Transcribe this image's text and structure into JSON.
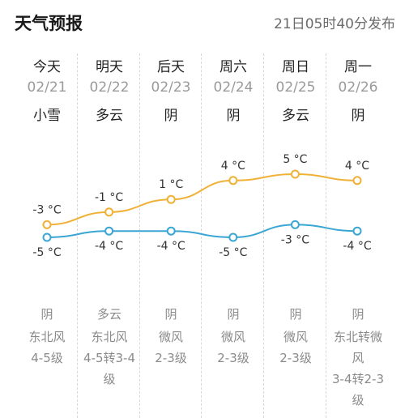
{
  "header": {
    "title": "天气预报",
    "publish_time": "21日05时40分发布"
  },
  "days": [
    {
      "day": "今天",
      "date": "02/21",
      "condition": "小雪",
      "high": -3,
      "high_label": "-3 °C",
      "low": -5,
      "low_label": "-5 °C",
      "night_condition": "阴",
      "wind_dir": "东北风",
      "wind_level": "4-5级"
    },
    {
      "day": "明天",
      "date": "02/22",
      "condition": "多云",
      "high": -1,
      "high_label": "-1 °C",
      "low": -4,
      "low_label": "-4 °C",
      "night_condition": "多云",
      "wind_dir": "东北风",
      "wind_level": "4-5转3-4级"
    },
    {
      "day": "后天",
      "date": "02/23",
      "condition": "阴",
      "high": 1,
      "high_label": "1 °C",
      "low": -4,
      "low_label": "-4 °C",
      "night_condition": "阴",
      "wind_dir": "微风",
      "wind_level": "2-3级"
    },
    {
      "day": "周六",
      "date": "02/24",
      "condition": "阴",
      "high": 4,
      "high_label": "4 °C",
      "low": -5,
      "low_label": "-5 °C",
      "night_condition": "阴",
      "wind_dir": "微风",
      "wind_level": "2-3级"
    },
    {
      "day": "周日",
      "date": "02/25",
      "condition": "多云",
      "high": 5,
      "high_label": "5 °C",
      "low": -3,
      "low_label": "-3 °C",
      "night_condition": "阴",
      "wind_dir": "微风",
      "wind_level": "2-3级"
    },
    {
      "day": "周一",
      "date": "02/26",
      "condition": "阴",
      "high": 4,
      "high_label": "4 °C",
      "low": -4,
      "low_label": "-4 °C",
      "night_condition": "阴",
      "wind_dir": "东北转微风",
      "wind_level": "3-4转2-3级"
    }
  ],
  "chart_data": {
    "type": "line",
    "x": [
      "02/21",
      "02/22",
      "02/23",
      "02/24",
      "02/25",
      "02/26"
    ],
    "series": [
      {
        "values": [
          -3,
          -1,
          1,
          4,
          5,
          4
        ],
        "color": "#f0b136"
      },
      {
        "values": [
          -5,
          -4,
          -4,
          -5,
          -3,
          -4
        ],
        "color": "#3aa6d3"
      }
    ]
  }
}
